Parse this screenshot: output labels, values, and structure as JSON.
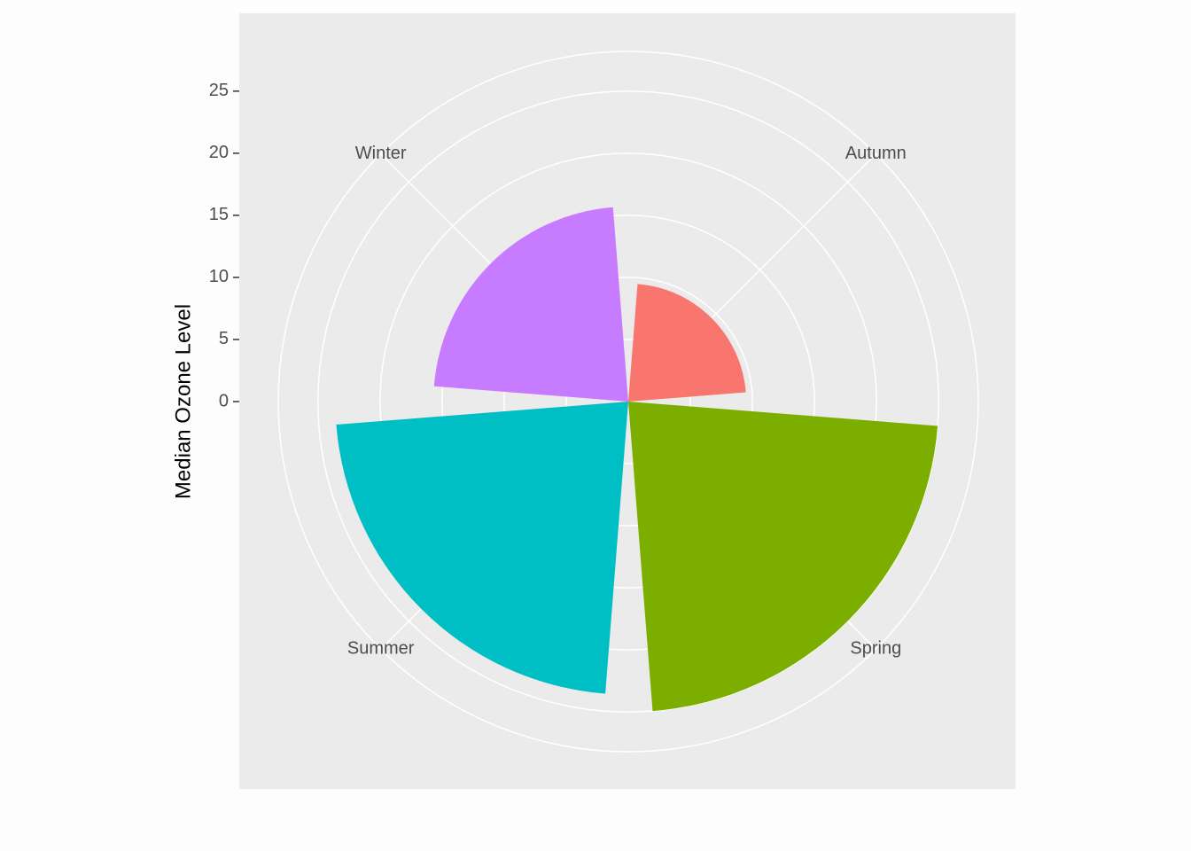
{
  "chart_data": {
    "type": "polar-bar",
    "y_label": "Median Ozone Level",
    "categories": [
      "Autumn",
      "Spring",
      "Summer",
      "Winter"
    ],
    "values": [
      9.5,
      25,
      23.6,
      15.7
    ],
    "colors": [
      "#F8766D",
      "#7CAE00",
      "#00BFC4",
      "#C77CFF"
    ],
    "ylim": [
      0,
      28.2
    ],
    "yticks": [
      0,
      5,
      10,
      15,
      20,
      25
    ],
    "grid": true
  }
}
